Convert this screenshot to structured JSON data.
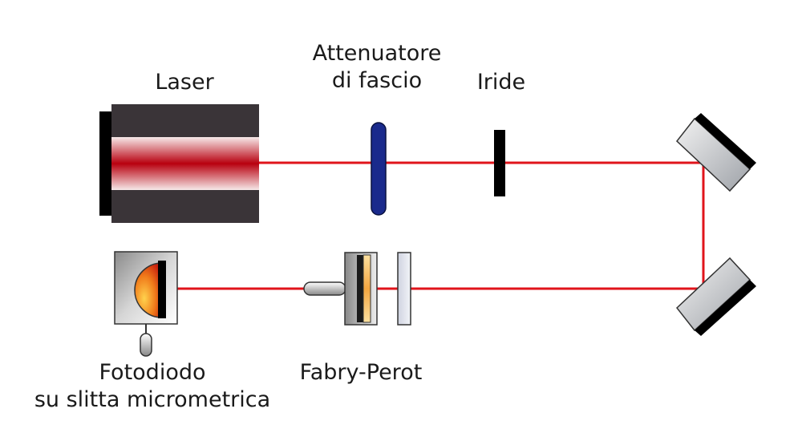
{
  "labels": {
    "laser": "Laser",
    "attenuator_line1": "Attenuatore",
    "attenuator_line2": "di fascio",
    "iris": "Iride",
    "fabry_perot": "Fabry-Perot",
    "photodiode_line1": "Fotodiodo",
    "photodiode_line2": "su slitta micrometrica"
  },
  "colors": {
    "beam": "#e0141b",
    "laser_body": "#3a3438",
    "attenuator": "#1a2a8c",
    "iris": "#000000",
    "mirror_glass": "#b9bcc1",
    "mirror_backing": "#000000",
    "photodiode_sensor": "#e04a10"
  }
}
